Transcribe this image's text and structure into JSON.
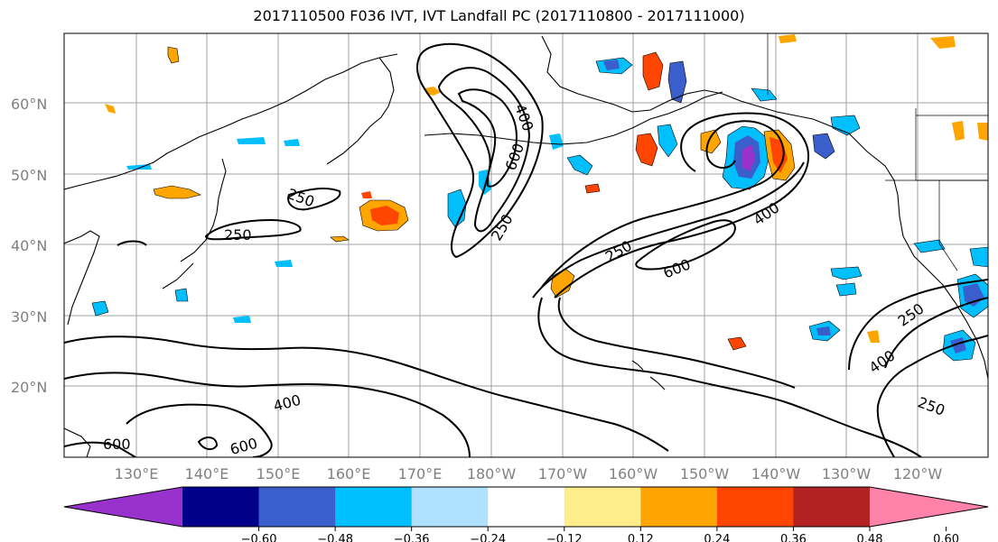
{
  "title": "2017110500 F036 IVT, IVT Landfall PC (2017110800 - 2017111000)",
  "lat_labels": [
    "60°N",
    "50°N",
    "40°N",
    "30°N",
    "20°N"
  ],
  "lon_labels": [
    "130°E",
    "140°E",
    "150°E",
    "160°E",
    "170°E",
    "180°W",
    "170°W",
    "160°W",
    "150°W",
    "140°W",
    "130°W",
    "120°W"
  ],
  "contour_labels": [
    "250",
    "400",
    "600"
  ],
  "colorbar": {
    "ticks": [
      "−0.60",
      "−0.48",
      "−0.36",
      "−0.24",
      "−0.12",
      "0.12",
      "0.24",
      "0.36",
      "0.48",
      "0.60"
    ],
    "colors": [
      "#9932cc",
      "#00008b",
      "#3a5fcd",
      "#00bfff",
      "#b0e2ff",
      "#ffffff",
      "#ffec8b",
      "#ffa500",
      "#ff4500",
      "#b22222",
      "#ff82ab"
    ]
  },
  "chart_data": {
    "type": "heatmap",
    "title": "2017110500 F036 IVT, IVT Landfall PC (2017110800 - 2017111000)",
    "fields": [
      "IVT contours",
      "IVT Landfall PC shading"
    ],
    "contour_levels": [
      250,
      400,
      600
    ],
    "shading_levels": [
      -0.6,
      -0.48,
      -0.36,
      -0.24,
      -0.12,
      0.12,
      0.24,
      0.36,
      0.48,
      0.6
    ],
    "lon_ticks": [
      "130°E",
      "140°E",
      "150°E",
      "160°E",
      "170°E",
      "180°W",
      "170°W",
      "160°W",
      "150°W",
      "140°W",
      "130°W",
      "120°W"
    ],
    "lat_ticks": [
      "20°N",
      "30°N",
      "40°N",
      "50°N",
      "60°N"
    ],
    "grid": true
  }
}
